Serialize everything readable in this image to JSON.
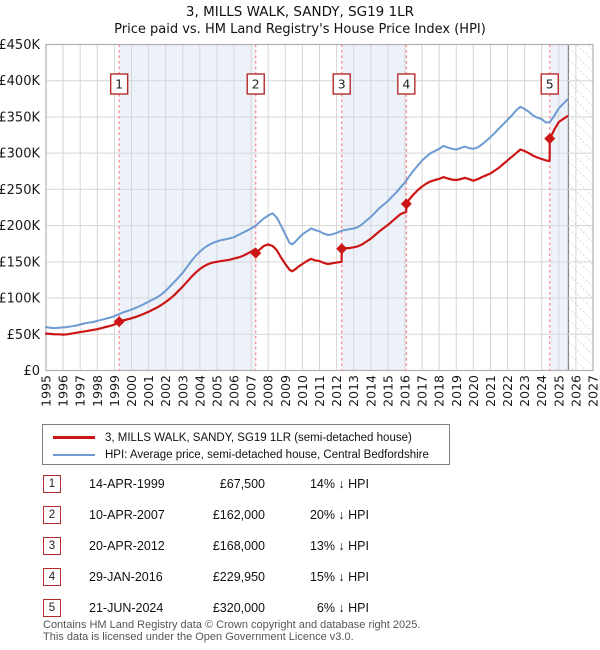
{
  "title": {
    "line1": "3, MILLS WALK, SANDY, SG19 1LR",
    "line2": "Price paid vs. HM Land Registry's House Price Index (HPI)"
  },
  "chart_data": {
    "type": "line",
    "x_range": [
      1995,
      2027
    ],
    "x_ticks": [
      1995,
      1996,
      1997,
      1998,
      1999,
      2000,
      2001,
      2002,
      2003,
      2004,
      2005,
      2006,
      2007,
      2008,
      2009,
      2010,
      2011,
      2012,
      2013,
      2014,
      2015,
      2016,
      2017,
      2018,
      2019,
      2020,
      2021,
      2022,
      2023,
      2024,
      2025,
      2026,
      2027
    ],
    "y_max_k": 450,
    "y_tick_step_k": 50,
    "y_tick_labels": [
      "£0",
      "£50K",
      "£100K",
      "£150K",
      "£200K",
      "£250K",
      "£300K",
      "£350K",
      "£400K",
      "£450K"
    ],
    "units": "GBP thousands",
    "grid": true,
    "legend_position": "bottom",
    "future_hatch_start": 2025.56,
    "colors": {
      "property_line": "#cc1515",
      "hpi_line": "#6d9bd1",
      "sale_dashed_line": "#ff8080",
      "badge_border": "#b52b2b",
      "ownership_band": "#edf2fa",
      "gridline": "#d6d6d6",
      "plot_border": "#b0b0b0",
      "hatch_line": "#bbbbbb",
      "hatch_boundary": "#8a8a8a"
    },
    "ownership_bands": [
      [
        1999.28,
        2007.27
      ],
      [
        2012.3,
        2016.08
      ],
      [
        2024.47,
        2025.56
      ]
    ],
    "sales": [
      {
        "num": "1",
        "year": 1999.28,
        "price_k": 67.5
      },
      {
        "num": "2",
        "year": 2007.27,
        "price_k": 162
      },
      {
        "num": "3",
        "year": 2012.3,
        "price_k": 168
      },
      {
        "num": "4",
        "year": 2016.08,
        "price_k": 229.95
      },
      {
        "num": "5",
        "year": 2024.47,
        "price_k": 320
      }
    ],
    "series": [
      {
        "name": "HPI: Average price, semi-detached house, Central Bedfordshire",
        "color": "#6d9bd1",
        "width": 2,
        "points": [
          [
            1995,
            60
          ],
          [
            1995.25,
            59
          ],
          [
            1995.5,
            58.5
          ],
          [
            1995.75,
            59
          ],
          [
            1996,
            59.5
          ],
          [
            1996.25,
            60
          ],
          [
            1996.5,
            61
          ],
          [
            1996.75,
            62
          ],
          [
            1997,
            63.5
          ],
          [
            1997.25,
            65
          ],
          [
            1997.5,
            66
          ],
          [
            1997.75,
            67
          ],
          [
            1998,
            68.5
          ],
          [
            1998.25,
            70
          ],
          [
            1998.5,
            71.5
          ],
          [
            1998.75,
            73
          ],
          [
            1999,
            75
          ],
          [
            1999.28,
            78
          ],
          [
            1999.5,
            80
          ],
          [
            1999.75,
            82
          ],
          [
            2000,
            84
          ],
          [
            2000.25,
            86.5
          ],
          [
            2000.5,
            89
          ],
          [
            2000.75,
            92
          ],
          [
            2001,
            95
          ],
          [
            2001.25,
            98
          ],
          [
            2001.5,
            101
          ],
          [
            2001.75,
            105
          ],
          [
            2002,
            110
          ],
          [
            2002.25,
            116
          ],
          [
            2002.5,
            122
          ],
          [
            2002.75,
            128.5
          ],
          [
            2003,
            135
          ],
          [
            2003.25,
            143
          ],
          [
            2003.5,
            151
          ],
          [
            2003.75,
            158
          ],
          [
            2004,
            164
          ],
          [
            2004.25,
            169
          ],
          [
            2004.5,
            173
          ],
          [
            2004.75,
            176
          ],
          [
            2005,
            178
          ],
          [
            2005.25,
            180
          ],
          [
            2005.5,
            181
          ],
          [
            2005.75,
            182.5
          ],
          [
            2006,
            184
          ],
          [
            2006.25,
            187
          ],
          [
            2006.5,
            190
          ],
          [
            2006.75,
            193
          ],
          [
            2007,
            196
          ],
          [
            2007.27,
            200
          ],
          [
            2007.5,
            205
          ],
          [
            2007.75,
            210
          ],
          [
            2008,
            214
          ],
          [
            2008.25,
            217
          ],
          [
            2008.5,
            211
          ],
          [
            2008.75,
            200
          ],
          [
            2009,
            188
          ],
          [
            2009.25,
            176
          ],
          [
            2009.4,
            174
          ],
          [
            2009.6,
            178
          ],
          [
            2009.75,
            182
          ],
          [
            2010,
            188
          ],
          [
            2010.25,
            192
          ],
          [
            2010.5,
            196
          ],
          [
            2010.75,
            194
          ],
          [
            2011,
            192
          ],
          [
            2011.25,
            189
          ],
          [
            2011.5,
            187
          ],
          [
            2011.75,
            188
          ],
          [
            2012,
            190
          ],
          [
            2012.3,
            193
          ],
          [
            2012.5,
            194
          ],
          [
            2012.75,
            195
          ],
          [
            2013,
            196
          ],
          [
            2013.25,
            198
          ],
          [
            2013.5,
            202
          ],
          [
            2013.75,
            207
          ],
          [
            2014,
            212
          ],
          [
            2014.25,
            218
          ],
          [
            2014.5,
            224
          ],
          [
            2014.75,
            229
          ],
          [
            2015,
            234
          ],
          [
            2015.25,
            240
          ],
          [
            2015.5,
            246
          ],
          [
            2015.75,
            253
          ],
          [
            2016.08,
            262
          ],
          [
            2016.25,
            268
          ],
          [
            2016.5,
            276
          ],
          [
            2016.75,
            283
          ],
          [
            2017,
            290
          ],
          [
            2017.25,
            295
          ],
          [
            2017.5,
            300
          ],
          [
            2017.75,
            303
          ],
          [
            2018,
            306
          ],
          [
            2018.25,
            310
          ],
          [
            2018.5,
            308
          ],
          [
            2018.75,
            306
          ],
          [
            2019,
            305
          ],
          [
            2019.25,
            307
          ],
          [
            2019.5,
            309
          ],
          [
            2019.75,
            307
          ],
          [
            2020,
            306
          ],
          [
            2020.25,
            308
          ],
          [
            2020.5,
            312
          ],
          [
            2020.75,
            317
          ],
          [
            2021,
            322
          ],
          [
            2021.25,
            328
          ],
          [
            2021.5,
            334
          ],
          [
            2021.75,
            340
          ],
          [
            2022,
            346
          ],
          [
            2022.25,
            352
          ],
          [
            2022.5,
            359
          ],
          [
            2022.75,
            364
          ],
          [
            2023,
            361
          ],
          [
            2023.25,
            357
          ],
          [
            2023.5,
            352
          ],
          [
            2023.75,
            349
          ],
          [
            2024,
            347
          ],
          [
            2024.25,
            342
          ],
          [
            2024.47,
            343
          ],
          [
            2024.75,
            352
          ],
          [
            2025,
            362
          ],
          [
            2025.25,
            368
          ],
          [
            2025.5,
            374
          ]
        ]
      },
      {
        "name": "3, MILLS WALK, SANDY, SG19 1LR (semi-detached house)",
        "color": "#cc1515",
        "width": 2.2,
        "points": [
          [
            1995,
            51
          ],
          [
            1995.25,
            50.5
          ],
          [
            1995.5,
            50
          ],
          [
            1995.75,
            50
          ],
          [
            1996,
            49.5
          ],
          [
            1996.25,
            50
          ],
          [
            1996.5,
            51
          ],
          [
            1996.75,
            52
          ],
          [
            1997,
            53
          ],
          [
            1997.25,
            54
          ],
          [
            1997.5,
            55
          ],
          [
            1997.75,
            56
          ],
          [
            1998,
            57
          ],
          [
            1998.25,
            58.5
          ],
          [
            1998.5,
            60
          ],
          [
            1998.75,
            61.5
          ],
          [
            1999,
            63.5
          ],
          [
            1999.27,
            65.5
          ],
          [
            1999.28,
            67.5
          ],
          [
            1999.5,
            69
          ],
          [
            1999.75,
            70.5
          ],
          [
            2000,
            72
          ],
          [
            2000.25,
            74
          ],
          [
            2000.5,
            76
          ],
          [
            2000.75,
            78.5
          ],
          [
            2001,
            81
          ],
          [
            2001.25,
            84
          ],
          [
            2001.5,
            87
          ],
          [
            2001.75,
            90.5
          ],
          [
            2002,
            94.5
          ],
          [
            2002.25,
            99
          ],
          [
            2002.5,
            104
          ],
          [
            2002.75,
            110
          ],
          [
            2003,
            116
          ],
          [
            2003.25,
            122.5
          ],
          [
            2003.5,
            129
          ],
          [
            2003.75,
            135
          ],
          [
            2004,
            140
          ],
          [
            2004.25,
            144
          ],
          [
            2004.5,
            147
          ],
          [
            2004.75,
            149
          ],
          [
            2005,
            150
          ],
          [
            2005.25,
            151
          ],
          [
            2005.5,
            152
          ],
          [
            2005.75,
            153
          ],
          [
            2006,
            154.5
          ],
          [
            2006.25,
            156
          ],
          [
            2006.5,
            158
          ],
          [
            2006.75,
            161
          ],
          [
            2007,
            164
          ],
          [
            2007.26,
            168
          ],
          [
            2007.28,
            162
          ],
          [
            2007.5,
            167
          ],
          [
            2007.75,
            172
          ],
          [
            2008,
            174
          ],
          [
            2008.25,
            172
          ],
          [
            2008.5,
            166
          ],
          [
            2008.75,
            156
          ],
          [
            2009,
            147
          ],
          [
            2009.25,
            139
          ],
          [
            2009.4,
            137
          ],
          [
            2009.6,
            140
          ],
          [
            2009.75,
            143
          ],
          [
            2010,
            147
          ],
          [
            2010.25,
            151
          ],
          [
            2010.5,
            154
          ],
          [
            2010.75,
            152
          ],
          [
            2011,
            151
          ],
          [
            2011.25,
            148.5
          ],
          [
            2011.5,
            147
          ],
          [
            2011.75,
            148
          ],
          [
            2012,
            149
          ],
          [
            2012.29,
            150
          ],
          [
            2012.3,
            168
          ],
          [
            2012.5,
            169
          ],
          [
            2012.75,
            169
          ],
          [
            2013,
            170
          ],
          [
            2013.25,
            171.5
          ],
          [
            2013.5,
            174
          ],
          [
            2013.75,
            178
          ],
          [
            2014,
            182
          ],
          [
            2014.25,
            187
          ],
          [
            2014.5,
            192
          ],
          [
            2014.75,
            196.5
          ],
          [
            2015,
            201
          ],
          [
            2015.25,
            206
          ],
          [
            2015.5,
            211
          ],
          [
            2015.75,
            216
          ],
          [
            2016.07,
            219
          ],
          [
            2016.08,
            229.95
          ],
          [
            2016.25,
            236
          ],
          [
            2016.5,
            243
          ],
          [
            2016.75,
            249
          ],
          [
            2017,
            254
          ],
          [
            2017.25,
            258
          ],
          [
            2017.5,
            261
          ],
          [
            2017.75,
            263
          ],
          [
            2018,
            264.5
          ],
          [
            2018.25,
            267
          ],
          [
            2018.5,
            265
          ],
          [
            2018.75,
            263.5
          ],
          [
            2019,
            263
          ],
          [
            2019.25,
            264
          ],
          [
            2019.5,
            266
          ],
          [
            2019.75,
            264
          ],
          [
            2020,
            262
          ],
          [
            2020.25,
            264
          ],
          [
            2020.5,
            267
          ],
          [
            2020.75,
            269.5
          ],
          [
            2021,
            272
          ],
          [
            2021.25,
            276
          ],
          [
            2021.5,
            280
          ],
          [
            2021.75,
            285
          ],
          [
            2022,
            290
          ],
          [
            2022.25,
            295
          ],
          [
            2022.5,
            300
          ],
          [
            2022.75,
            305
          ],
          [
            2023,
            303
          ],
          [
            2023.25,
            300
          ],
          [
            2023.5,
            296.5
          ],
          [
            2023.75,
            294
          ],
          [
            2024,
            292
          ],
          [
            2024.25,
            290
          ],
          [
            2024.46,
            289
          ],
          [
            2024.47,
            320
          ],
          [
            2024.75,
            333
          ],
          [
            2025,
            343
          ],
          [
            2025.25,
            347
          ],
          [
            2025.5,
            351
          ]
        ]
      }
    ]
  },
  "legend": {
    "items": [
      {
        "label": "3, MILLS WALK, SANDY, SG19 1LR (semi-detached house)",
        "color": "#cc1515",
        "thickness": 3
      },
      {
        "label": "HPI: Average price, semi-detached house, Central Bedfordshire",
        "color": "#6d9bd1",
        "thickness": 2
      }
    ]
  },
  "table": {
    "rows": [
      {
        "num": "1",
        "date": "14-APR-1999",
        "price": "£67,500",
        "hpi_diff": "14% ↓ HPI"
      },
      {
        "num": "2",
        "date": "10-APR-2007",
        "price": "£162,000",
        "hpi_diff": "20% ↓ HPI"
      },
      {
        "num": "3",
        "date": "20-APR-2012",
        "price": "£168,000",
        "hpi_diff": "13% ↓ HPI"
      },
      {
        "num": "4",
        "date": "29-JAN-2016",
        "price": "£229,950",
        "hpi_diff": "15% ↓ HPI"
      },
      {
        "num": "5",
        "date": "21-JUN-2024",
        "price": "£320,000",
        "hpi_diff": "6% ↓ HPI"
      }
    ]
  },
  "footer": {
    "line1": "Contains HM Land Registry data © Crown copyright and database right 2025.",
    "line2": "This data is licensed under the Open Government Licence v3.0."
  }
}
